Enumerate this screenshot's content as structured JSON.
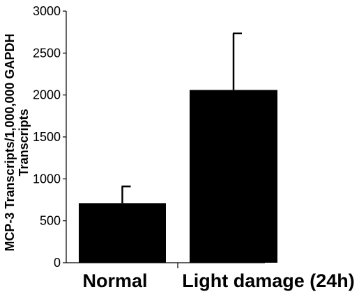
{
  "chart_data": {
    "type": "bar",
    "categories": [
      "Normal",
      "Light damage (24h)"
    ],
    "values": [
      710,
      2060
    ],
    "error_upper": [
      910,
      2735
    ],
    "ylabel_lines": [
      "MCP-3 Transcripts/1,000,000 GAPDH",
      "Transcripts"
    ],
    "xlabel": "",
    "title": "",
    "ylim": [
      0,
      3000
    ],
    "yticks": [
      0,
      500,
      1000,
      1500,
      2000,
      2500,
      3000
    ],
    "ytick_labels": [
      "0",
      "500",
      "1000",
      "1500",
      "2000",
      "2500",
      "3000"
    ],
    "grid": false,
    "legend": "none",
    "bar_color": "#000000"
  }
}
